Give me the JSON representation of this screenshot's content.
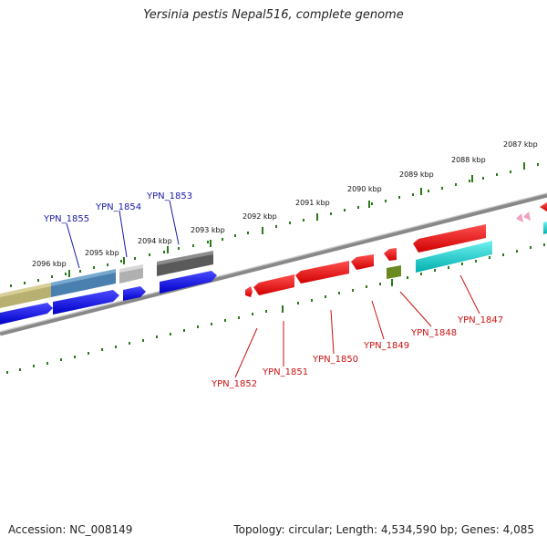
{
  "title": "Yersinia pestis Nepal516, complete genome",
  "footer": {
    "accession": "Accession: NC_008149",
    "summary": "Topology: circular; Length: 4,534,590 bp; Genes: 4,085"
  },
  "kbp_labels": [
    "2087 kbp",
    "2088 kbp",
    "2089 kbp",
    "2090 kbp",
    "2091 kbp",
    "2092 kbp",
    "2093 kbp",
    "2094 kbp",
    "2095 kbp",
    "2096 kbp"
  ],
  "gene_labels_top": [
    "YPN_1855",
    "YPN_1854",
    "YPN_1853"
  ],
  "gene_labels_bottom": [
    "YPN_1852",
    "YPN_1851",
    "YPN_1850",
    "YPN_1849",
    "YPN_1848",
    "YPN_1847"
  ],
  "colors": {
    "label_blue": "#1a1aa8",
    "label_red": "#cc1111",
    "tick_green": "#2a7a1a",
    "backbone": "#7a7a7a",
    "gene_blue": "#0a0ad8",
    "gene_red": "#e81010",
    "gene_cyan": "#10c8c8",
    "gene_olive": "#b8b070",
    "gene_steel": "#4a80b0",
    "gene_gray": "#5a5a5a",
    "gene_lightgray": "#b0b0b0",
    "gene_darkolive": "#6a8a20",
    "gene_pink": "#f0a0c0"
  }
}
